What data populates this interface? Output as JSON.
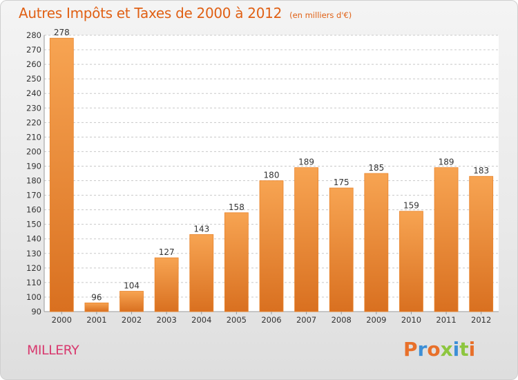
{
  "header": {
    "title": "Autres Impôts et Taxes de 2000 à 2012",
    "unit": "(en milliers d'€)"
  },
  "footer": {
    "city": "MILLERY",
    "logo": "Proxiti"
  },
  "colors": {
    "title": "#e06014",
    "city": "#d83a6f",
    "bar_light": "#f7a452",
    "bar_dark": "#d97020",
    "logo_letters": [
      "#e8702a",
      "#3d8fd6",
      "#e8702a",
      "#8dc63f",
      "#3d8fd6",
      "#8dc63f",
      "#e8702a"
    ]
  },
  "chart_data": {
    "type": "bar",
    "categories": [
      "2000",
      "2001",
      "2002",
      "2003",
      "2004",
      "2005",
      "2006",
      "2007",
      "2008",
      "2009",
      "2010",
      "2011",
      "2012"
    ],
    "values": [
      278,
      96,
      104,
      127,
      143,
      158,
      180,
      189,
      175,
      185,
      159,
      189,
      183
    ],
    "ylim": [
      90,
      280
    ],
    "yticks": [
      90,
      100,
      110,
      120,
      130,
      140,
      150,
      160,
      170,
      180,
      190,
      200,
      210,
      220,
      230,
      240,
      250,
      260,
      270,
      280
    ],
    "grid": "horizontal dashed",
    "data_labels": true
  }
}
